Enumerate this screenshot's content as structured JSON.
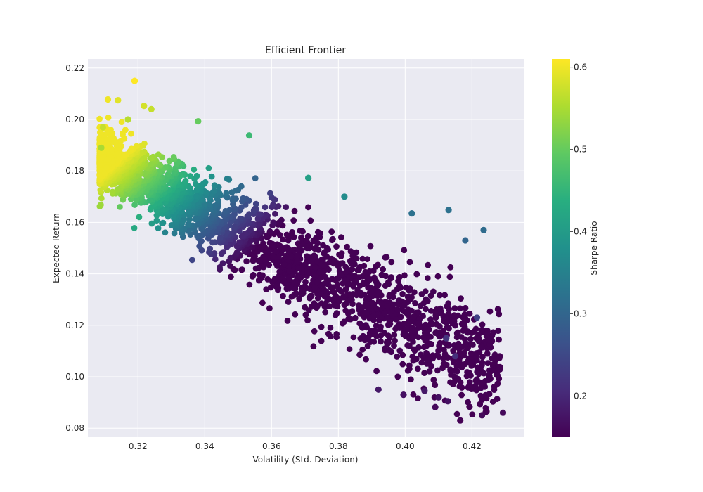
{
  "chart_data": {
    "type": "scatter",
    "title": "Efficient Frontier",
    "xlabel": "Volatility (Std. Deviation)",
    "ylabel": "Expected Return",
    "xlim": [
      0.305,
      0.4355
    ],
    "ylim": [
      0.0765,
      0.2235
    ],
    "xticks": [
      0.32,
      0.34,
      0.36,
      0.38,
      0.4,
      0.42
    ],
    "xtick_labels": [
      "0.32",
      "0.34",
      "0.36",
      "0.38",
      "0.40",
      "0.42"
    ],
    "yticks": [
      0.08,
      0.1,
      0.12,
      0.14,
      0.16,
      0.18,
      0.2,
      0.22
    ],
    "ytick_labels": [
      "0.08",
      "0.10",
      "0.12",
      "0.14",
      "0.16",
      "0.18",
      "0.20",
      "0.22"
    ],
    "grid": true,
    "colormap": "viridis",
    "color_variable": "Sharpe Ratio",
    "colorbar": {
      "label": "Sharpe Ratio",
      "range": [
        0.15,
        0.61
      ],
      "ticks": [
        0.2,
        0.3,
        0.4,
        0.5,
        0.6
      ],
      "tick_labels": [
        "0.2",
        "0.3",
        "0.4",
        "0.5",
        "0.6"
      ]
    },
    "points": [
      {
        "x": 0.319,
        "y": 0.215,
        "sharpe": 0.61
      },
      {
        "x": 0.311,
        "y": 0.2078,
        "sharpe": 0.6
      },
      {
        "x": 0.314,
        "y": 0.2075,
        "sharpe": 0.59
      },
      {
        "x": 0.3218,
        "y": 0.2053,
        "sharpe": 0.58
      },
      {
        "x": 0.324,
        "y": 0.204,
        "sharpe": 0.57
      },
      {
        "x": 0.3095,
        "y": 0.197,
        "sharpe": 0.57
      },
      {
        "x": 0.317,
        "y": 0.2,
        "sharpe": 0.56
      },
      {
        "x": 0.309,
        "y": 0.189,
        "sharpe": 0.55
      },
      {
        "x": 0.338,
        "y": 0.1993,
        "sharpe": 0.5
      },
      {
        "x": 0.3533,
        "y": 0.1938,
        "sharpe": 0.46
      },
      {
        "x": 0.371,
        "y": 0.1773,
        "sharpe": 0.41
      },
      {
        "x": 0.3818,
        "y": 0.17,
        "sharpe": 0.37
      },
      {
        "x": 0.402,
        "y": 0.1635,
        "sharpe": 0.32
      },
      {
        "x": 0.413,
        "y": 0.1648,
        "sharpe": 0.32
      },
      {
        "x": 0.418,
        "y": 0.153,
        "sharpe": 0.3
      },
      {
        "x": 0.4235,
        "y": 0.157,
        "sharpe": 0.31
      },
      {
        "x": 0.4215,
        "y": 0.123,
        "sharpe": 0.24
      },
      {
        "x": 0.4123,
        "y": 0.115,
        "sharpe": 0.22
      },
      {
        "x": 0.415,
        "y": 0.108,
        "sharpe": 0.21
      },
      {
        "x": 0.4058,
        "y": 0.0945,
        "sharpe": 0.18
      },
      {
        "x": 0.41,
        "y": 0.092,
        "sharpe": 0.17
      },
      {
        "x": 0.4128,
        "y": 0.0905,
        "sharpe": 0.17
      },
      {
        "x": 0.409,
        "y": 0.0882,
        "sharpe": 0.16
      },
      {
        "x": 0.4165,
        "y": 0.083,
        "sharpe": 0.15
      },
      {
        "x": 0.423,
        "y": 0.085,
        "sharpe": 0.16
      },
      {
        "x": 0.4293,
        "y": 0.086,
        "sharpe": 0.16
      },
      {
        "x": 0.392,
        "y": 0.095,
        "sharpe": 0.18
      },
      {
        "x": 0.3995,
        "y": 0.093,
        "sharpe": 0.17
      }
    ]
  }
}
